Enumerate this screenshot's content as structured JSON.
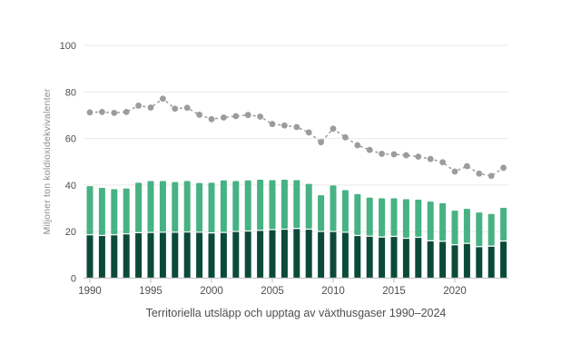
{
  "chart_data": {
    "type": "bar",
    "subtype": "stacked-bars-with-dashed-dotted-line",
    "title": "Territoriella utsläpp och upptag av växthusgaser 1990–2024",
    "ylabel": "Miljoner ton koldioxidekvivalenter",
    "xlabel": "",
    "x": [
      1990,
      1991,
      1992,
      1993,
      1994,
      1995,
      1996,
      1997,
      1998,
      1999,
      2000,
      2001,
      2002,
      2003,
      2004,
      2005,
      2006,
      2007,
      2008,
      2009,
      2010,
      2011,
      2012,
      2013,
      2014,
      2015,
      2016,
      2017,
      2018,
      2019,
      2020,
      2021,
      2022,
      2023,
      2024
    ],
    "x_tick_labels": [
      1990,
      1995,
      2000,
      2005,
      2010,
      2015,
      2020
    ],
    "y_tick_labels": [
      0,
      20,
      40,
      60,
      80,
      100
    ],
    "ylim": [
      0,
      100
    ],
    "grid": true,
    "legend_position": "none",
    "series": [
      {
        "name": "bar-lower-segment",
        "type": "bar-stack-lower",
        "color": "#0b4a39",
        "values": [
          18.4,
          18.1,
          18.4,
          18.8,
          19.3,
          19.4,
          19.5,
          19.5,
          19.6,
          19.5,
          19.2,
          19.4,
          19.8,
          20.0,
          20.3,
          20.6,
          20.8,
          21.1,
          20.8,
          19.8,
          19.8,
          19.5,
          18.1,
          17.8,
          17.4,
          17.7,
          16.9,
          17.3,
          15.8,
          15.6,
          14.1,
          14.7,
          13.3,
          13.5,
          15.7
        ]
      },
      {
        "name": "bar-upper-segment",
        "type": "bar-stack-upper",
        "color": "#47b283",
        "values": [
          21.1,
          20.7,
          19.8,
          19.7,
          21.7,
          22.3,
          22.2,
          21.8,
          22.1,
          21.4,
          21.8,
          22.6,
          21.9,
          22.0,
          22.0,
          21.5,
          21.5,
          21.0,
          19.7,
          15.8,
          20.0,
          18.3,
          18.0,
          16.8,
          16.9,
          16.6,
          17.0,
          16.4,
          17.1,
          16.6,
          14.9,
          15.1,
          14.9,
          14.1,
          14.5
        ]
      },
      {
        "name": "total-trend-line",
        "type": "line-dashed-with-dots",
        "color": "#9c9c9c",
        "values": [
          71.2,
          71.4,
          71.0,
          71.4,
          74.1,
          73.3,
          77.1,
          72.8,
          73.2,
          70.2,
          68.3,
          69.0,
          69.6,
          70.1,
          69.4,
          66.2,
          65.6,
          64.9,
          62.6,
          58.4,
          64.2,
          60.5,
          57.1,
          55.1,
          53.4,
          53.2,
          52.8,
          52.2,
          51.2,
          49.8,
          45.8,
          48.1,
          44.9,
          43.9,
          47.4
        ]
      }
    ],
    "colors": {
      "background": "#ffffff",
      "gridline": "#e9e9e9",
      "axis_line": "#c8c8c8",
      "tick_label": "#4f4f4f",
      "axis_title": "#8c8c8c",
      "caption": "#4f4f4f",
      "bar_gap_separator": "#ffffff"
    }
  }
}
